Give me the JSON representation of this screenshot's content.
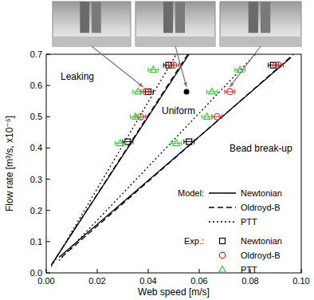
{
  "chart_data": {
    "type": "scatter",
    "xlabel": "Web speed [m/s]",
    "ylabel": "Flow rate [m³/s, x10⁻⁶]",
    "xlim": [
      0,
      0.1
    ],
    "ylim": [
      0,
      0.7
    ],
    "xticks": [
      {
        "value": 0,
        "label": "0.00"
      },
      0.02,
      0.04,
      0.06,
      0.08,
      {
        "value": 0.1,
        "label": "0.10"
      }
    ],
    "yticks": [
      {
        "value": 0,
        "label": "0.0"
      },
      0.1,
      0.2,
      0.3,
      0.4,
      0.5,
      0.6,
      0.7
    ],
    "grid": false,
    "legend": "lower right",
    "legend_groups": [
      "Model:",
      "Exp.:"
    ],
    "annotations": [
      "Leaking",
      "Uniform",
      "Bead break-up"
    ],
    "marked_point": {
      "x": 0.055,
      "y": 0.58
    },
    "series": [
      {
        "name": "Newtonian",
        "type": "line",
        "color": "#000000",
        "line_style": "solid",
        "x": [
          0.002,
          0.056,
          null,
          0.005,
          0.096
        ],
        "values": [
          0.025,
          0.7,
          null,
          0.05,
          0.69
        ]
      },
      {
        "name": "Oldroyd-B",
        "type": "line",
        "color": "#000000",
        "line_style": "dashed",
        "x": [
          0.002,
          0.0555,
          null,
          0.006,
          0.097
        ],
        "values": [
          0.025,
          0.7,
          null,
          0.05,
          0.7
        ]
      },
      {
        "name": "PTT",
        "type": "line",
        "color": "#000000",
        "line_style": "dotted",
        "x": [
          0.002,
          0.051,
          null,
          0.005,
          0.082
        ],
        "values": [
          0.02,
          0.7,
          null,
          0.04,
          0.7
        ]
      },
      {
        "name": "Newtonian",
        "type": "scatter",
        "color": "#000000",
        "marker": "square",
        "x": [
          0.032,
          0.056,
          0.04,
          0.048,
          0.089
        ],
        "values": [
          0.42,
          0.42,
          0.58,
          0.665,
          0.665
        ],
        "x_error": [
          0.002,
          0.002,
          0.002,
          0.002,
          0.002
        ]
      },
      {
        "name": "Oldroyd-B",
        "type": "scatter",
        "color": "#e0201b",
        "marker": "circle",
        "x": [
          0.037,
          0.067,
          0.039,
          0.072,
          0.05,
          0.091
        ],
        "values": [
          0.5,
          0.5,
          0.58,
          0.58,
          0.665,
          0.665
        ],
        "x_error": [
          0.002,
          0.002,
          0.002,
          0.002,
          0.002,
          0.002
        ]
      },
      {
        "name": "PTT",
        "type": "scatter",
        "color": "#3ec83a",
        "marker": "triangle",
        "x": [
          0.029,
          0.051,
          0.035,
          0.063,
          0.036,
          0.065,
          0.042,
          0.076
        ],
        "values": [
          0.415,
          0.415,
          0.5,
          0.5,
          0.58,
          0.58,
          0.65,
          0.65
        ],
        "x_error": [
          0.002,
          0.002,
          0.002,
          0.002,
          0.002,
          0.002,
          0.002,
          0.002
        ]
      }
    ]
  }
}
